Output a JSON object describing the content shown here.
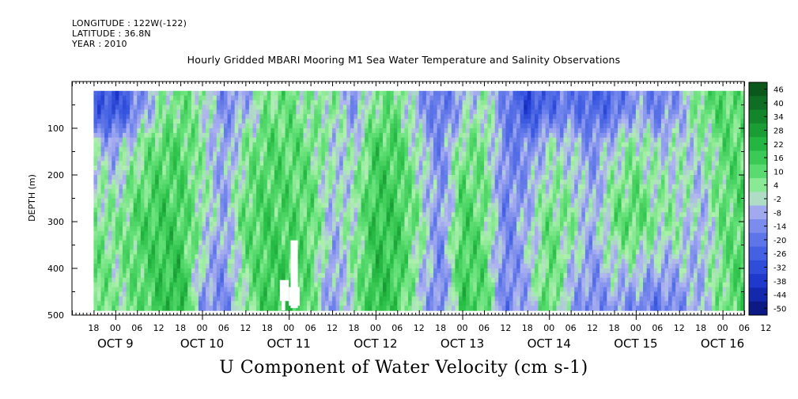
{
  "header": {
    "longitude": "LONGITUDE : 122W(-122)",
    "latitude": "LATITUDE : 36.8N",
    "year": "YEAR : 2010",
    "title": "Hourly Gridded MBARI Mooring M1 Sea Water Temperature and Salinity Observations"
  },
  "chart_data": {
    "type": "heatmap",
    "title": "Hourly Gridded MBARI Mooring M1 Sea Water Temperature and Salinity Observations",
    "xlabel": "U Component of Water Velocity (cm s-1)",
    "ylabel": "DEPTH (m)",
    "x_range_hours_of_day_labels": [
      "18",
      "00",
      "06",
      "12",
      "18",
      "00",
      "06",
      "12",
      "18",
      "00",
      "06",
      "12",
      "18",
      "00",
      "06",
      "12",
      "18",
      "00",
      "06",
      "12",
      "18",
      "00",
      "06",
      "12",
      "18",
      "00",
      "06",
      "12",
      "18",
      "00",
      "06",
      "12"
    ],
    "x_hour_start": 12,
    "x_hour_count": 186,
    "day_labels": [
      {
        "text": "OCT  9",
        "hour": 24
      },
      {
        "text": "OCT 10",
        "hour": 48
      },
      {
        "text": "OCT 11",
        "hour": 72
      },
      {
        "text": "OCT 12",
        "hour": 96
      },
      {
        "text": "OCT 13",
        "hour": 120
      },
      {
        "text": "OCT 14",
        "hour": 144
      },
      {
        "text": "OCT 15",
        "hour": 168
      },
      {
        "text": "OCT 16",
        "hour": 192
      }
    ],
    "ylim": [
      500,
      0
    ],
    "yticks": [
      "100",
      "200",
      "300",
      "400",
      "500"
    ],
    "data_depth_range": [
      20,
      490
    ],
    "data_hour_range": [
      18,
      198
    ],
    "colorbar": {
      "labels": [
        "46",
        "40",
        "34",
        "28",
        "22",
        "16",
        "10",
        "4",
        "-2",
        "-8",
        "-14",
        "-20",
        "-26",
        "-32",
        "-38",
        "-44",
        "-50"
      ],
      "min": -50,
      "max": 50
    },
    "columns": [
      {
        "hour": 18,
        "shallow": -22,
        "mid": 8,
        "deep": 14
      },
      {
        "hour": 24,
        "shallow": -30,
        "mid": 6,
        "deep": 4
      },
      {
        "hour": 30,
        "shallow": -14,
        "mid": 14,
        "deep": 10
      },
      {
        "hour": 36,
        "shallow": 2,
        "mid": 18,
        "deep": 18
      },
      {
        "hour": 42,
        "shallow": 10,
        "mid": 16,
        "deep": 24
      },
      {
        "hour": 48,
        "shallow": 4,
        "mid": 4,
        "deep": -10
      },
      {
        "hour": 54,
        "shallow": -12,
        "mid": -8,
        "deep": -14
      },
      {
        "hour": 60,
        "shallow": -6,
        "mid": 12,
        "deep": 4
      },
      {
        "hour": 66,
        "shallow": 8,
        "mid": 16,
        "deep": 18
      },
      {
        "hour": 72,
        "shallow": 10,
        "mid": 14,
        "deep": 20
      },
      {
        "hour": 78,
        "shallow": 4,
        "mid": 12,
        "deep": 10
      },
      {
        "hour": 84,
        "shallow": 6,
        "mid": -4,
        "deep": -12
      },
      {
        "hour": 90,
        "shallow": -10,
        "mid": 4,
        "deep": 4
      },
      {
        "hour": 96,
        "shallow": 8,
        "mid": 20,
        "deep": 22
      },
      {
        "hour": 102,
        "shallow": 10,
        "mid": 18,
        "deep": 16
      },
      {
        "hour": 108,
        "shallow": -8,
        "mid": 6,
        "deep": -2
      },
      {
        "hour": 114,
        "shallow": -18,
        "mid": -12,
        "deep": -16
      },
      {
        "hour": 120,
        "shallow": -6,
        "mid": 16,
        "deep": 18
      },
      {
        "hour": 126,
        "shallow": 4,
        "mid": 10,
        "deep": 14
      },
      {
        "hour": 132,
        "shallow": -14,
        "mid": -14,
        "deep": -16
      },
      {
        "hour": 138,
        "shallow": -30,
        "mid": -4,
        "deep": -6
      },
      {
        "hour": 144,
        "shallow": -20,
        "mid": 10,
        "deep": 14
      },
      {
        "hour": 150,
        "shallow": -16,
        "mid": 6,
        "deep": -8
      },
      {
        "hour": 156,
        "shallow": -22,
        "mid": -6,
        "deep": -14
      },
      {
        "hour": 162,
        "shallow": -20,
        "mid": 10,
        "deep": -10
      },
      {
        "hour": 168,
        "shallow": -8,
        "mid": 14,
        "deep": -14
      },
      {
        "hour": 174,
        "shallow": -16,
        "mid": 6,
        "deep": -18
      },
      {
        "hour": 180,
        "shallow": -8,
        "mid": 4,
        "deep": -12
      },
      {
        "hour": 186,
        "shallow": 10,
        "mid": -6,
        "deep": -4
      },
      {
        "hour": 192,
        "shallow": 14,
        "mid": 10,
        "deep": 8
      },
      {
        "hour": 198,
        "shallow": 10,
        "mid": 14,
        "deep": 16
      }
    ],
    "missing_blocks": [
      {
        "hour": [
          72.5,
          74.5
        ],
        "depth": [
          340,
          485
        ]
      },
      {
        "hour": [
          69.5,
          72.0
        ],
        "depth": [
          425,
          470
        ]
      },
      {
        "hour": [
          70.0,
          71.0
        ],
        "depth": [
          470,
          490
        ]
      },
      {
        "hour": [
          72.0,
          75.0
        ],
        "depth": [
          440,
          480
        ]
      }
    ]
  }
}
